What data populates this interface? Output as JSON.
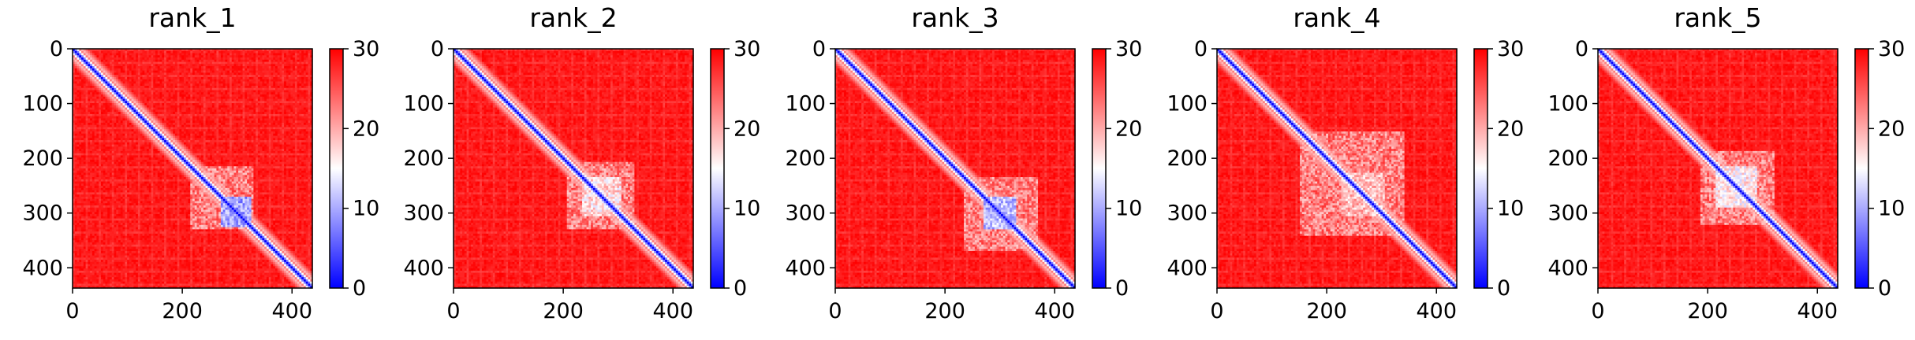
{
  "chart_data": [
    {
      "type": "heatmap",
      "title": "rank_1",
      "xticks": [
        "0",
        "200",
        "400"
      ],
      "yticks": [
        "0",
        "100",
        "200",
        "300",
        "400"
      ],
      "xlim": [
        0,
        437
      ],
      "ylim": [
        437,
        0
      ],
      "colorbar": {
        "ticks": [
          "0",
          "10",
          "20",
          "30"
        ],
        "range": [
          0,
          30
        ],
        "colormap": "bwr"
      },
      "features": {
        "blocks": [
          {
            "start": 215,
            "end": 330,
            "min_value": 5.5,
            "peak_start": 270,
            "peak_end": 325
          }
        ]
      }
    },
    {
      "type": "heatmap",
      "title": "rank_2",
      "xticks": [
        "0",
        "200",
        "400"
      ],
      "yticks": [
        "0",
        "100",
        "200",
        "300",
        "400"
      ],
      "xlim": [
        0,
        437
      ],
      "ylim": [
        437,
        0
      ],
      "colorbar": {
        "ticks": [
          "0",
          "10",
          "20",
          "30"
        ],
        "range": [
          0,
          30
        ],
        "colormap": "bwr"
      },
      "features": {
        "blocks": [
          {
            "start": 205,
            "end": 330,
            "min_value": 13,
            "peak_start": 235,
            "peak_end": 305
          }
        ]
      }
    },
    {
      "type": "heatmap",
      "title": "rank_3",
      "xticks": [
        "0",
        "200",
        "400"
      ],
      "yticks": [
        "0",
        "100",
        "200",
        "300",
        "400"
      ],
      "xlim": [
        0,
        437
      ],
      "ylim": [
        437,
        0
      ],
      "colorbar": {
        "ticks": [
          "0",
          "10",
          "20",
          "30"
        ],
        "range": [
          0,
          30
        ],
        "colormap": "bwr"
      },
      "features": {
        "blocks": [
          {
            "start": 235,
            "end": 370,
            "min_value": 7,
            "peak_start": 270,
            "peak_end": 330
          }
        ]
      }
    },
    {
      "type": "heatmap",
      "title": "rank_4",
      "xticks": [
        "0",
        "200",
        "400"
      ],
      "yticks": [
        "0",
        "100",
        "200",
        "300",
        "400"
      ],
      "xlim": [
        0,
        437
      ],
      "ylim": [
        437,
        0
      ],
      "colorbar": {
        "ticks": [
          "0",
          "10",
          "20",
          "30"
        ],
        "range": [
          0,
          30
        ],
        "colormap": "bwr"
      },
      "features": {
        "blocks": [
          {
            "start": 150,
            "end": 340,
            "min_value": 15,
            "peak_start": 225,
            "peak_end": 305
          }
        ]
      }
    },
    {
      "type": "heatmap",
      "title": "rank_5",
      "xticks": [
        "0",
        "200",
        "400"
      ],
      "yticks": [
        "0",
        "100",
        "200",
        "300",
        "400"
      ],
      "xlim": [
        0,
        437
      ],
      "ylim": [
        437,
        0
      ],
      "colorbar": {
        "ticks": [
          "0",
          "10",
          "20",
          "30"
        ],
        "range": [
          0,
          30
        ],
        "colormap": "bwr"
      },
      "features": {
        "blocks": [
          {
            "start": 185,
            "end": 320,
            "min_value": 12,
            "peak_start": 215,
            "peak_end": 290
          }
        ]
      }
    }
  ],
  "colors": {
    "low": "#0000ff",
    "mid": "#ffffff",
    "high": "#ff0000"
  }
}
